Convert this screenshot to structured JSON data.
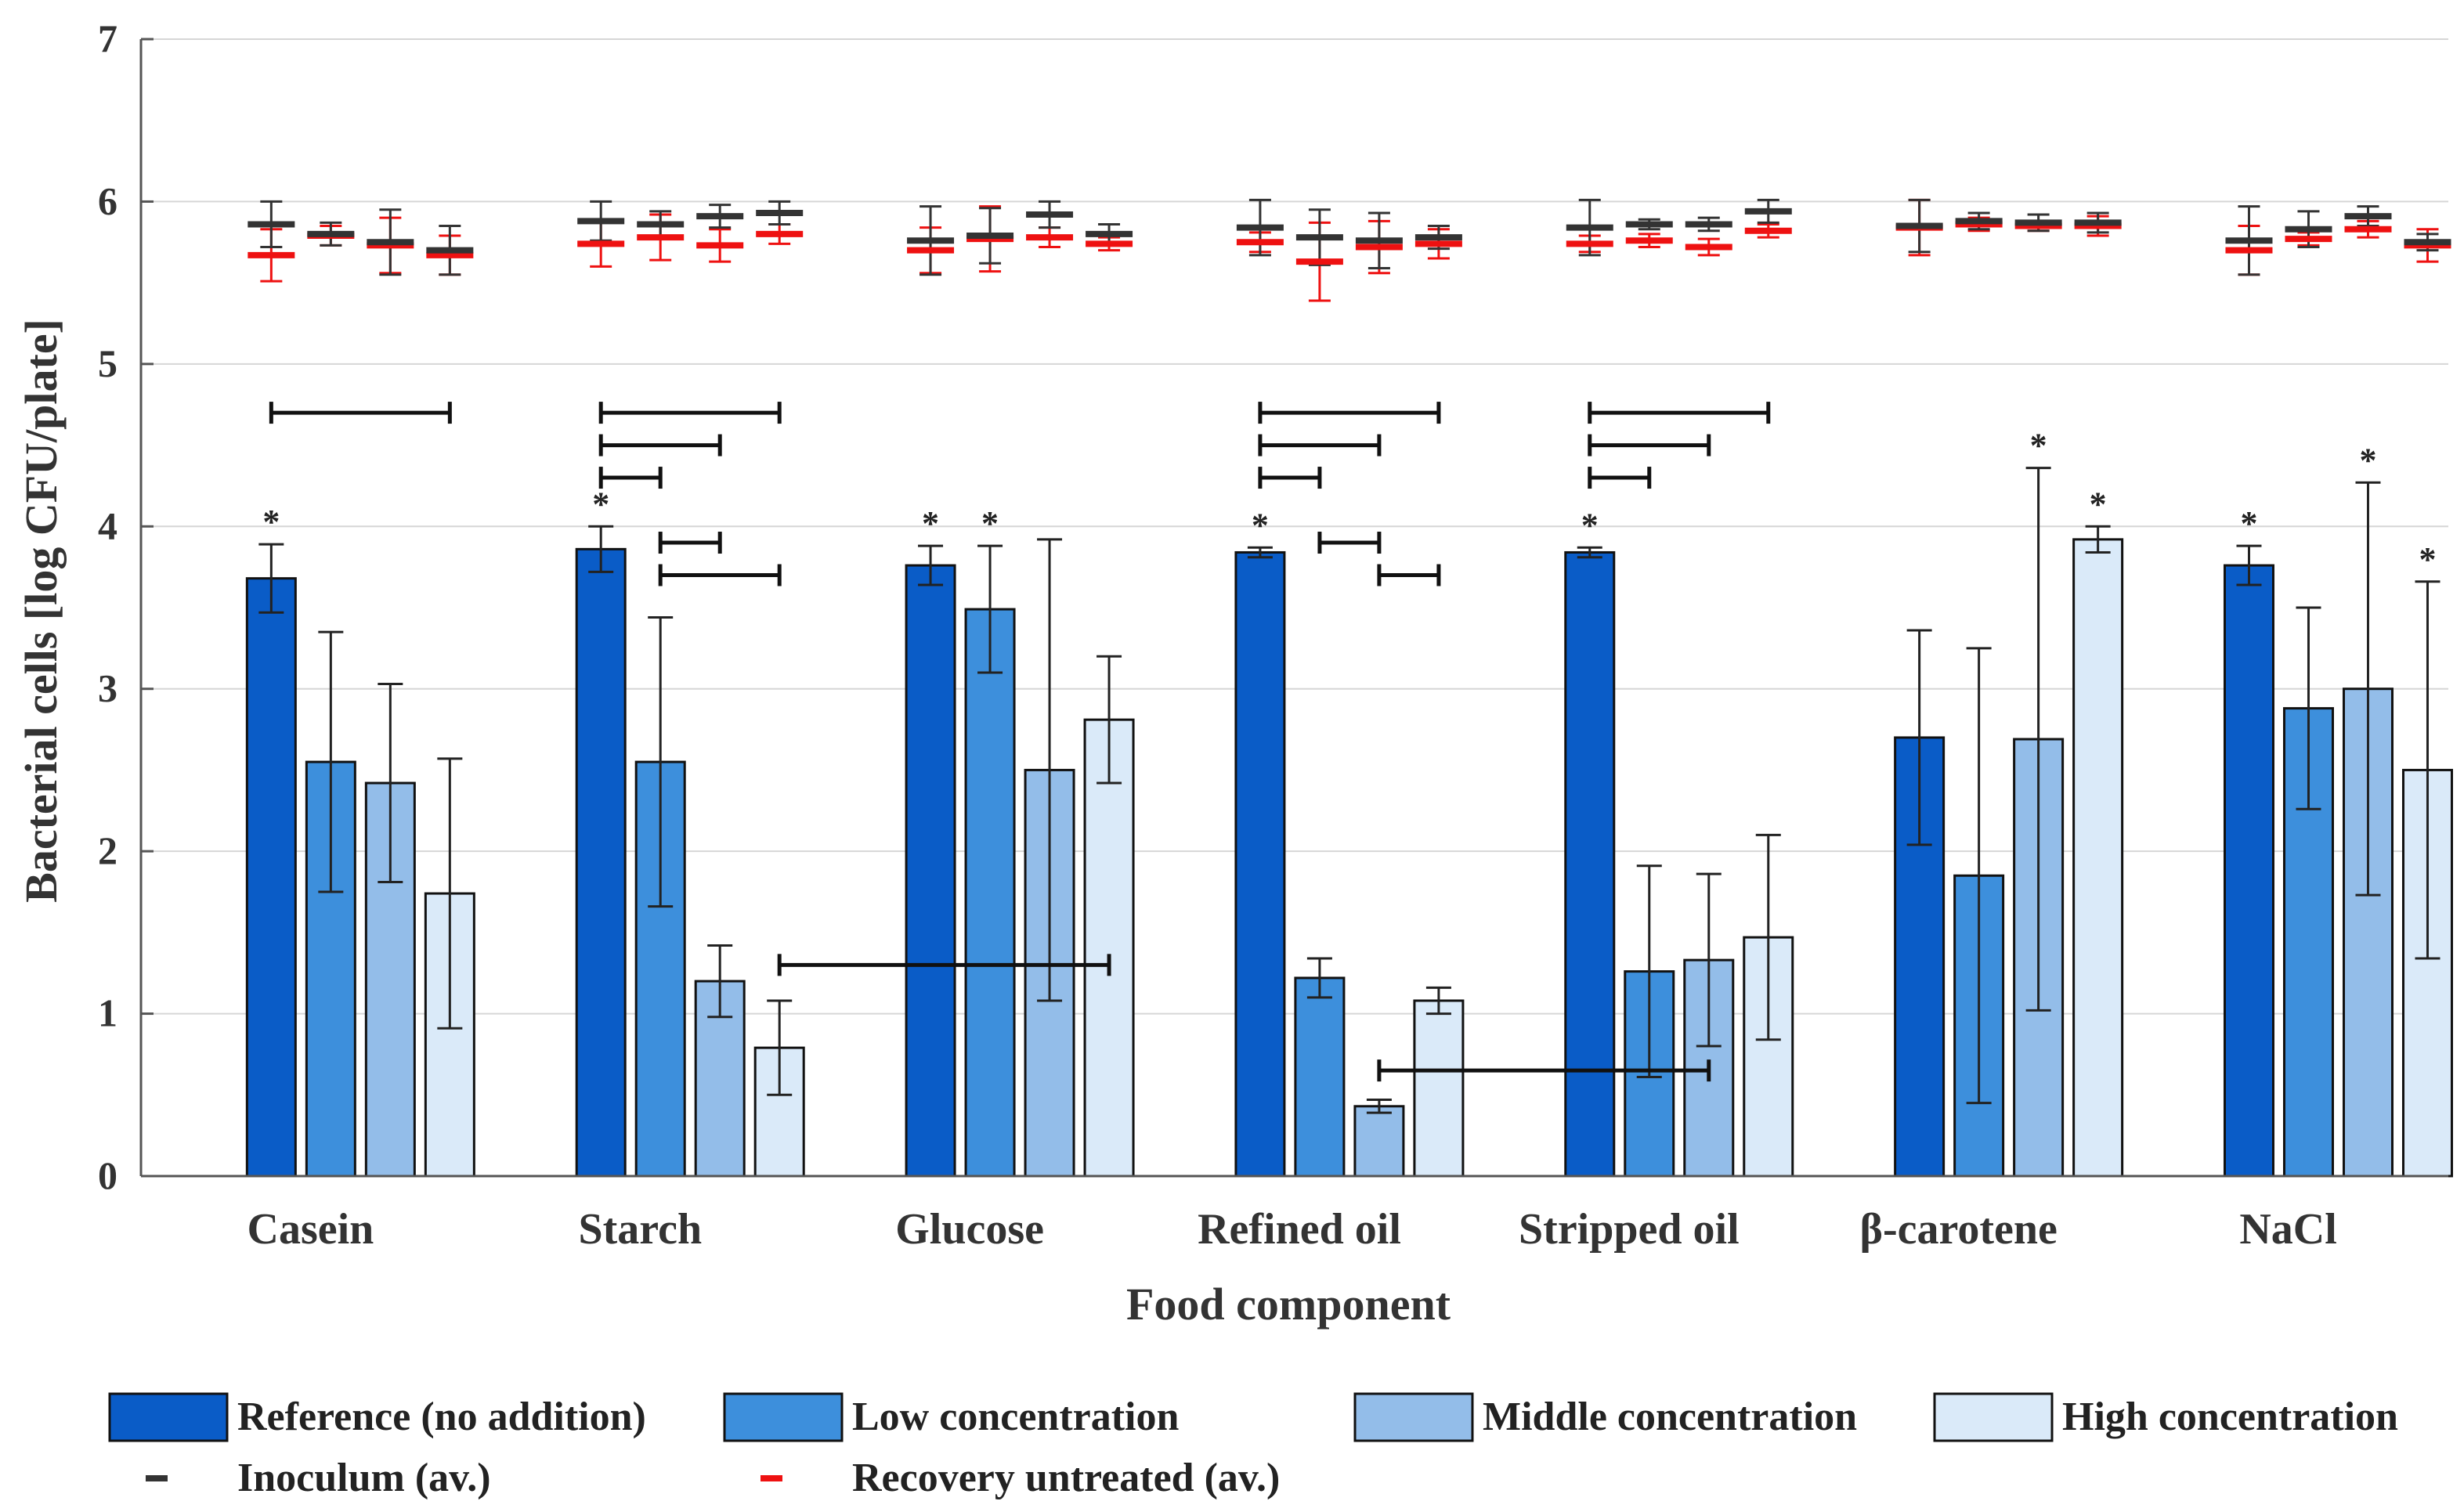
{
  "chart_data": {
    "type": "bar",
    "title": "",
    "xlabel": "Food component",
    "ylabel": "Bacterial cells [log CFU/plate]",
    "ylim": [
      0,
      7
    ],
    "yticks": [
      0,
      1,
      2,
      3,
      4,
      5,
      6,
      7
    ],
    "grid": true,
    "legend_position": "bottom",
    "categories": [
      "Casein",
      "Starch",
      "Glucose",
      "Refined oil",
      "Stripped oil",
      "β-carotene",
      "NaCl"
    ],
    "series": [
      {
        "name": "Reference (no addition)",
        "color": "#0a5cc7",
        "values": [
          3.68,
          3.86,
          3.76,
          3.84,
          3.84,
          2.7,
          3.76
        ],
        "error": [
          0.21,
          0.14,
          0.12,
          0.03,
          0.03,
          0.66,
          0.12
        ],
        "significant": [
          true,
          true,
          true,
          true,
          true,
          false,
          true
        ]
      },
      {
        "name": "Low concentration",
        "color": "#3d8fdc",
        "values": [
          2.55,
          2.55,
          3.49,
          1.22,
          1.26,
          1.85,
          2.88
        ],
        "error": [
          0.8,
          0.89,
          0.39,
          0.12,
          0.65,
          1.4,
          0.62
        ],
        "significant": [
          false,
          false,
          true,
          false,
          false,
          false,
          false
        ]
      },
      {
        "name": "Middle concentration",
        "color": "#93bde9",
        "values": [
          2.42,
          1.2,
          2.5,
          0.43,
          1.33,
          2.69,
          3.0
        ],
        "error": [
          0.61,
          0.22,
          1.42,
          0.04,
          0.53,
          1.67,
          1.27
        ],
        "significant": [
          false,
          false,
          false,
          false,
          false,
          true,
          true
        ]
      },
      {
        "name": "High concentration",
        "color": "#daeaf9",
        "values": [
          1.74,
          0.79,
          2.81,
          1.08,
          1.47,
          3.92,
          2.5
        ],
        "error": [
          0.83,
          0.29,
          0.39,
          0.08,
          0.63,
          0.08,
          1.16
        ],
        "significant": [
          false,
          false,
          false,
          false,
          false,
          true,
          true
        ]
      }
    ],
    "inoculum": [
      [
        5.86,
        5.8,
        5.75,
        5.7
      ],
      [
        5.88,
        5.86,
        5.91,
        5.93
      ],
      [
        5.76,
        5.79,
        5.92,
        5.8
      ],
      [
        5.84,
        5.78,
        5.76,
        5.78
      ],
      [
        5.84,
        5.86,
        5.86,
        5.94
      ],
      [
        5.85,
        5.88,
        5.87,
        5.87
      ],
      [
        5.76,
        5.83,
        5.91,
        5.75
      ]
    ],
    "inoculum_error": [
      [
        0.14,
        0.07,
        0.2,
        0.15
      ],
      [
        0.12,
        0.08,
        0.07,
        0.07
      ],
      [
        0.21,
        0.17,
        0.08,
        0.06
      ],
      [
        0.17,
        0.17,
        0.17,
        0.07
      ],
      [
        0.17,
        0.03,
        0.04,
        0.07
      ],
      [
        0.16,
        0.05,
        0.05,
        0.06
      ],
      [
        0.21,
        0.11,
        0.06,
        0.05
      ]
    ],
    "recovery": [
      [
        5.67,
        5.79,
        5.73,
        5.67
      ],
      [
        5.74,
        5.78,
        5.73,
        5.8
      ],
      [
        5.7,
        5.77,
        5.78,
        5.74
      ],
      [
        5.75,
        5.63,
        5.72,
        5.74
      ],
      [
        5.74,
        5.76,
        5.72,
        5.82
      ],
      [
        5.84,
        5.86,
        5.85,
        5.85
      ],
      [
        5.7,
        5.77,
        5.83,
        5.73
      ]
    ],
    "recovery_error": [
      [
        0.16,
        0.06,
        0.17,
        0.12
      ],
      [
        0.14,
        0.14,
        0.1,
        0.06
      ],
      [
        0.14,
        0.2,
        0.06,
        0.04
      ],
      [
        0.06,
        0.24,
        0.16,
        0.09
      ],
      [
        0.05,
        0.04,
        0.05,
        0.04
      ],
      [
        0.17,
        0.04,
        0.03,
        0.06
      ],
      [
        0.15,
        0.04,
        0.05,
        0.1
      ]
    ],
    "significance_brackets": [
      {
        "y": 4.7,
        "from": [
          0,
          0
        ],
        "to": [
          0,
          3
        ]
      },
      {
        "y": 4.7,
        "from": [
          1,
          0
        ],
        "to": [
          1,
          3
        ]
      },
      {
        "y": 4.5,
        "from": [
          1,
          0
        ],
        "to": [
          1,
          2
        ]
      },
      {
        "y": 4.3,
        "from": [
          1,
          0
        ],
        "to": [
          1,
          1
        ]
      },
      {
        "y": 3.9,
        "from": [
          1,
          1
        ],
        "to": [
          1,
          2
        ]
      },
      {
        "y": 3.7,
        "from": [
          1,
          1
        ],
        "to": [
          1,
          3
        ]
      },
      {
        "y": 1.3,
        "from": [
          1,
          3
        ],
        "to": [
          2,
          3
        ]
      },
      {
        "y": 4.7,
        "from": [
          3,
          0
        ],
        "to": [
          3,
          3
        ]
      },
      {
        "y": 4.5,
        "from": [
          3,
          0
        ],
        "to": [
          3,
          2
        ]
      },
      {
        "y": 4.3,
        "from": [
          3,
          0
        ],
        "to": [
          3,
          1
        ]
      },
      {
        "y": 3.9,
        "from": [
          3,
          1
        ],
        "to": [
          3,
          2
        ]
      },
      {
        "y": 3.7,
        "from": [
          3,
          2
        ],
        "to": [
          3,
          3
        ]
      },
      {
        "y": 0.65,
        "from": [
          3,
          2
        ],
        "to": [
          4,
          2
        ]
      },
      {
        "y": 4.7,
        "from": [
          4,
          0
        ],
        "to": [
          4,
          3
        ]
      },
      {
        "y": 4.5,
        "from": [
          4,
          0
        ],
        "to": [
          4,
          2
        ]
      },
      {
        "y": 4.3,
        "from": [
          4,
          0
        ],
        "to": [
          4,
          1
        ]
      }
    ],
    "significance_marker": "*",
    "legend": [
      {
        "label": "Reference (no addition)",
        "kind": "box",
        "color": "#0a5cc7"
      },
      {
        "label": "Low concentration",
        "kind": "box",
        "color": "#3d8fdc"
      },
      {
        "label": "Middle concentration",
        "kind": "box",
        "color": "#93bde9"
      },
      {
        "label": "High concentration",
        "kind": "box",
        "color": "#daeaf9"
      },
      {
        "label": "Inoculum (av.)",
        "kind": "dash",
        "color": "#333333"
      },
      {
        "label": "Recovery untreated (av.)",
        "kind": "dash",
        "color": "#ee1111"
      }
    ]
  }
}
